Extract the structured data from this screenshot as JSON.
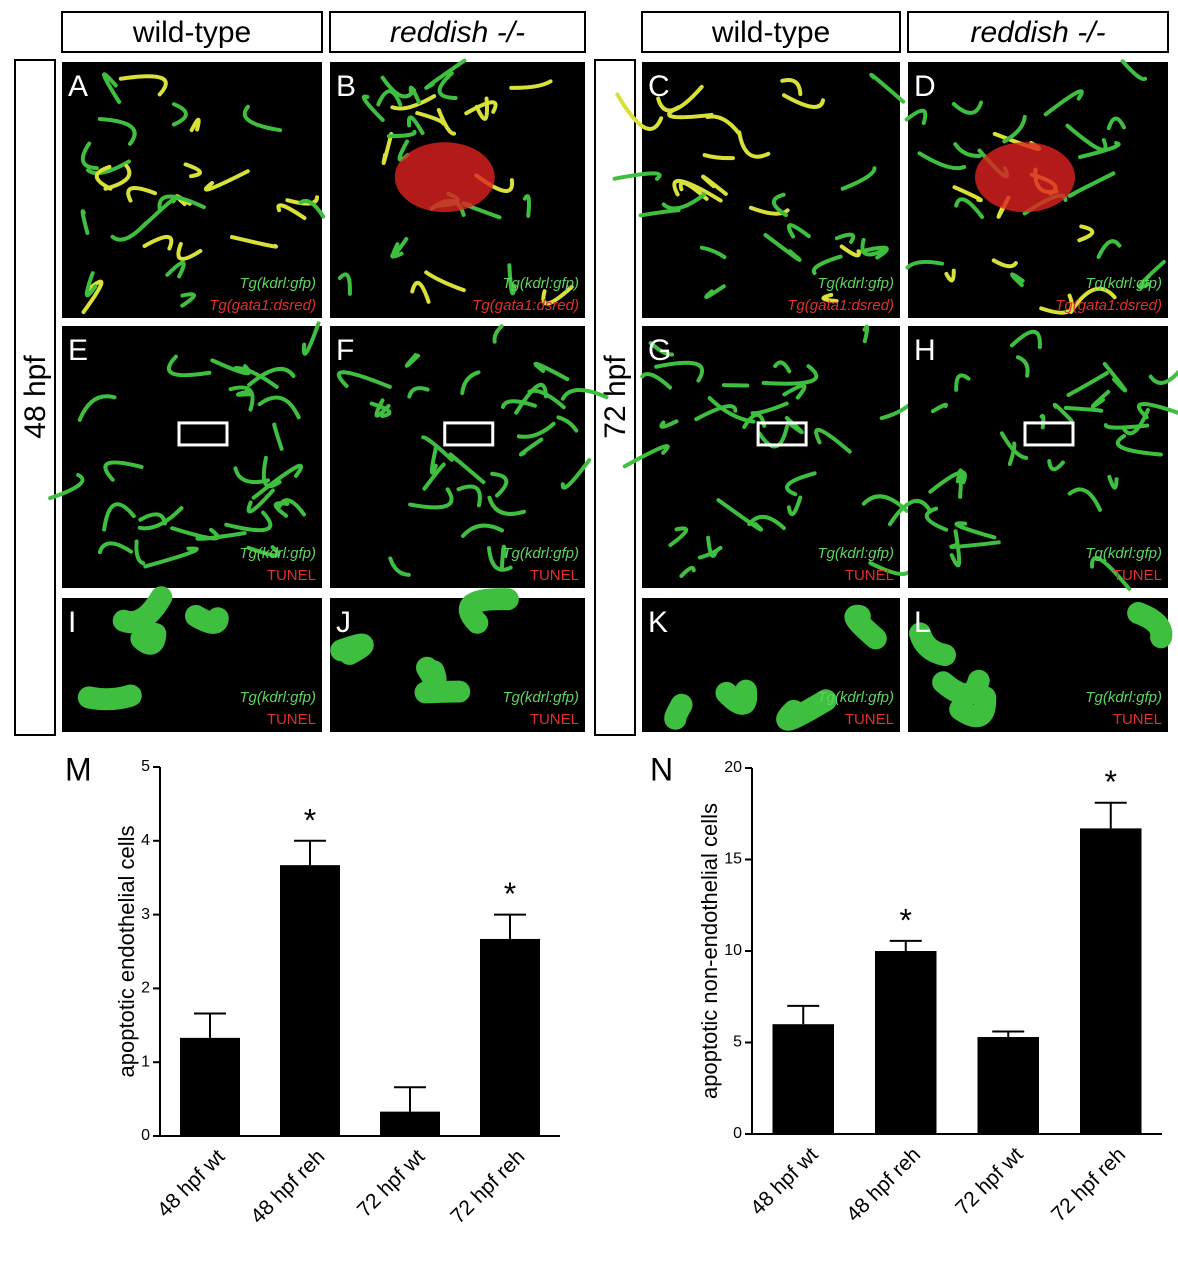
{
  "headers": [
    "wild-type",
    "reddish -/-",
    "wild-type",
    "reddish -/-"
  ],
  "side_labels": [
    "48 hpf",
    "72 hpf"
  ],
  "panels": [
    {
      "letter": "A",
      "lines": [
        "Tg(kdrl:gfp)",
        "Tg(gata1:dsred)"
      ]
    },
    {
      "letter": "B",
      "lines": [
        "Tg(kdrl:gfp)",
        "Tg(gata1:dsred)"
      ]
    },
    {
      "letter": "C",
      "lines": [
        "Tg(kdrl:gfp)",
        "Tg(gata1:dsred)"
      ]
    },
    {
      "letter": "D",
      "lines": [
        "Tg(kdrl:gfp)",
        "Tg(gata1:dsred)"
      ]
    },
    {
      "letter": "E",
      "lines": [
        "Tg(kdrl:gfp)",
        "TUNEL"
      ]
    },
    {
      "letter": "F",
      "lines": [
        "Tg(kdrl:gfp)",
        "TUNEL"
      ]
    },
    {
      "letter": "G",
      "lines": [
        "Tg(kdrl:gfp)",
        "TUNEL"
      ]
    },
    {
      "letter": "H",
      "lines": [
        "Tg(kdrl:gfp)",
        "TUNEL"
      ]
    },
    {
      "letter": "I",
      "lines": [
        "Tg(kdrl:gfp)",
        "TUNEL"
      ]
    },
    {
      "letter": "J",
      "lines": [
        "Tg(kdrl:gfp)",
        "TUNEL"
      ]
    },
    {
      "letter": "K",
      "lines": [
        "Tg(kdrl:gfp)",
        "TUNEL"
      ]
    },
    {
      "letter": "L",
      "lines": [
        "Tg(kdrl:gfp)",
        "TUNEL"
      ]
    }
  ],
  "chart_data": [
    {
      "type": "bar",
      "panel": "M",
      "y_label": "apoptotic endothelial cells",
      "categories": [
        "48 hpf wt",
        "48 hpf  reh",
        "72 hpf wt",
        "72 hpf reh"
      ],
      "values": [
        1.33,
        3.67,
        0.33,
        2.67
      ],
      "errors": [
        0.33,
        0.33,
        0.33,
        0.33
      ],
      "annotations": [
        null,
        "*",
        null,
        "*"
      ],
      "color": "#000000",
      "ylim": [
        0,
        5
      ],
      "yticks": [
        0,
        1,
        2,
        3,
        4,
        5
      ]
    },
    {
      "type": "bar",
      "panel": "N",
      "y_label": "apoptotic non-endothelial cells",
      "categories": [
        "48 hpf wt",
        "48 hpf  reh",
        "72 hpf wt",
        "72 hpf reh"
      ],
      "values": [
        6,
        10,
        5.3,
        16.7
      ],
      "errors": [
        1,
        0.55,
        0.3,
        1.4
      ],
      "annotations": [
        null,
        "*",
        null,
        "*"
      ],
      "color": "#000000",
      "ylim": [
        0,
        20
      ],
      "yticks": [
        0,
        5,
        10,
        15,
        20
      ]
    }
  ]
}
